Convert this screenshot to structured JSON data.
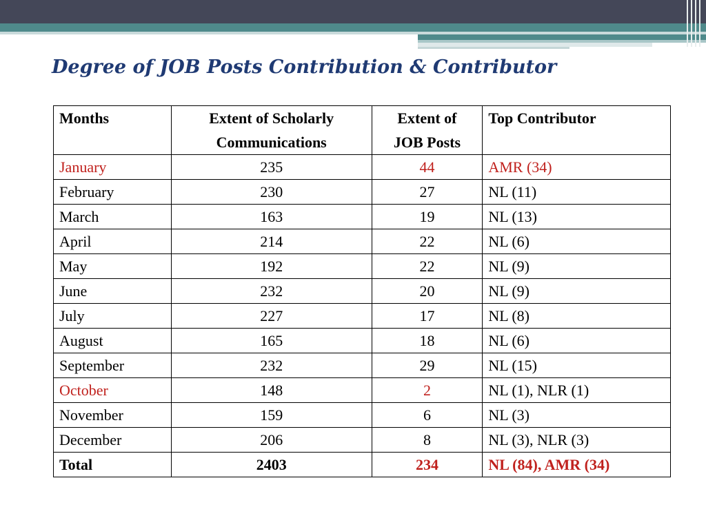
{
  "title": "Degree of JOB Posts Contribution & Contributor",
  "colors": {
    "title": "#1f3a73",
    "highlight": "#c0211d"
  },
  "table": {
    "headers": {
      "months": "Months",
      "scholarly_line1": "Extent of Scholarly",
      "scholarly_line2": "Communications",
      "job_line1": "Extent of",
      "job_line2": "JOB Posts",
      "contributor": "Top Contributor"
    },
    "rows": [
      {
        "month": "January",
        "scholarly": "235",
        "job": "44",
        "contributor": "AMR (34)"
      },
      {
        "month": "February",
        "scholarly": "230",
        "job": "27",
        "contributor": "NL (11)"
      },
      {
        "month": "March",
        "scholarly": "163",
        "job": "19",
        "contributor": "NL (13)"
      },
      {
        "month": "April",
        "scholarly": "214",
        "job": "22",
        "contributor": "NL (6)"
      },
      {
        "month": "May",
        "scholarly": "192",
        "job": "22",
        "contributor": "NL (9)"
      },
      {
        "month": "June",
        "scholarly": "232",
        "job": "20",
        "contributor": "NL (9)"
      },
      {
        "month": "July",
        "scholarly": "227",
        "job": "17",
        "contributor": "NL (8)"
      },
      {
        "month": "August",
        "scholarly": "165",
        "job": "18",
        "contributor": "NL (6)"
      },
      {
        "month": "September",
        "scholarly": "232",
        "job": "29",
        "contributor": "NL (15)"
      },
      {
        "month": "October",
        "scholarly": "148",
        "job": "2",
        "contributor": "NL (1), NLR (1)"
      },
      {
        "month": "November",
        "scholarly": "159",
        "job": "6",
        "contributor": "NL (3)"
      },
      {
        "month": "December",
        "scholarly": "206",
        "job": "8",
        "contributor": "NL (3), NLR (3)"
      }
    ],
    "total": {
      "label": "Total",
      "scholarly": "2403",
      "job": "234",
      "contributor": "NL (84), AMR (34)"
    }
  }
}
